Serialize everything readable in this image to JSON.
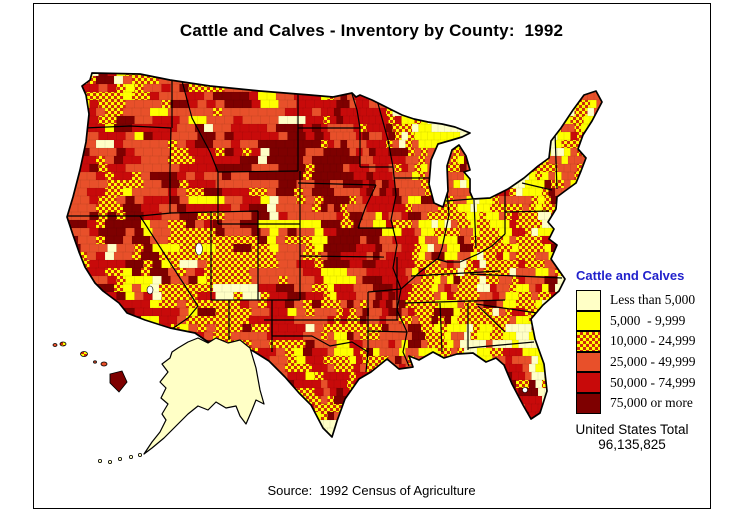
{
  "title": "Cattle and Calves - Inventory by County:  1992",
  "source": "Source:  1992 Census of Agriculture",
  "total": {
    "label": "United States Total",
    "value": "96,135,825"
  },
  "legend": {
    "title": "Cattle and Calves",
    "title_color": "#2222CC",
    "classes": [
      {
        "label": "Less than 5,000",
        "pattern": "solid",
        "fill": "#FFFFC6"
      },
      {
        "label": "5,000  - 9,999",
        "pattern": "solid",
        "fill": "#FFFF00"
      },
      {
        "label": "10,000 - 24,999",
        "pattern": "checker",
        "fill": "checker",
        "colors": [
          "#FFFF00",
          "#CF2B0D"
        ]
      },
      {
        "label": "25,000 - 49,999",
        "pattern": "solid",
        "fill": "#E8502A"
      },
      {
        "label": "50,000 - 74,999",
        "pattern": "solid",
        "fill": "#C80A0A"
      },
      {
        "label": "75,000 or more",
        "pattern": "solid",
        "fill": "#7E0000"
      }
    ]
  },
  "chart_data": {
    "type": "choropleth-map",
    "title": "Cattle and Calves - Inventory by County:  1992",
    "region": "United States, by county (incl. Alaska and Hawaii)",
    "legend_title": "Cattle and Calves",
    "classes": [
      {
        "range": "Less than 5,000",
        "min": 0,
        "max": 4999,
        "color": "#FFFFC6"
      },
      {
        "range": "5,000  - 9,999",
        "min": 5000,
        "max": 9999,
        "color": "#FFFF00"
      },
      {
        "range": "10,000 - 24,999",
        "min": 10000,
        "max": 24999,
        "color": "checkerboard #FFFF00 / #CF2B0D"
      },
      {
        "range": "25,000 - 49,999",
        "min": 25000,
        "max": 49999,
        "color": "#E8502A"
      },
      {
        "range": "50,000 - 74,999",
        "min": 50000,
        "max": 74999,
        "color": "#C80A0A"
      },
      {
        "range": "75,000 or more",
        "min": 75000,
        "max": null,
        "color": "#7E0000"
      }
    ],
    "us_total": 96135825,
    "us_total_label": "United States Total",
    "source": "Source:  1992 Census of Agriculture",
    "legend_position": "right",
    "notes": "County-level class-colored mosaic; Alaska shown in the 'Less than 5,000' class; Hawaii islands range from checkered to '75,000 or more' (Big Island dark red)."
  }
}
